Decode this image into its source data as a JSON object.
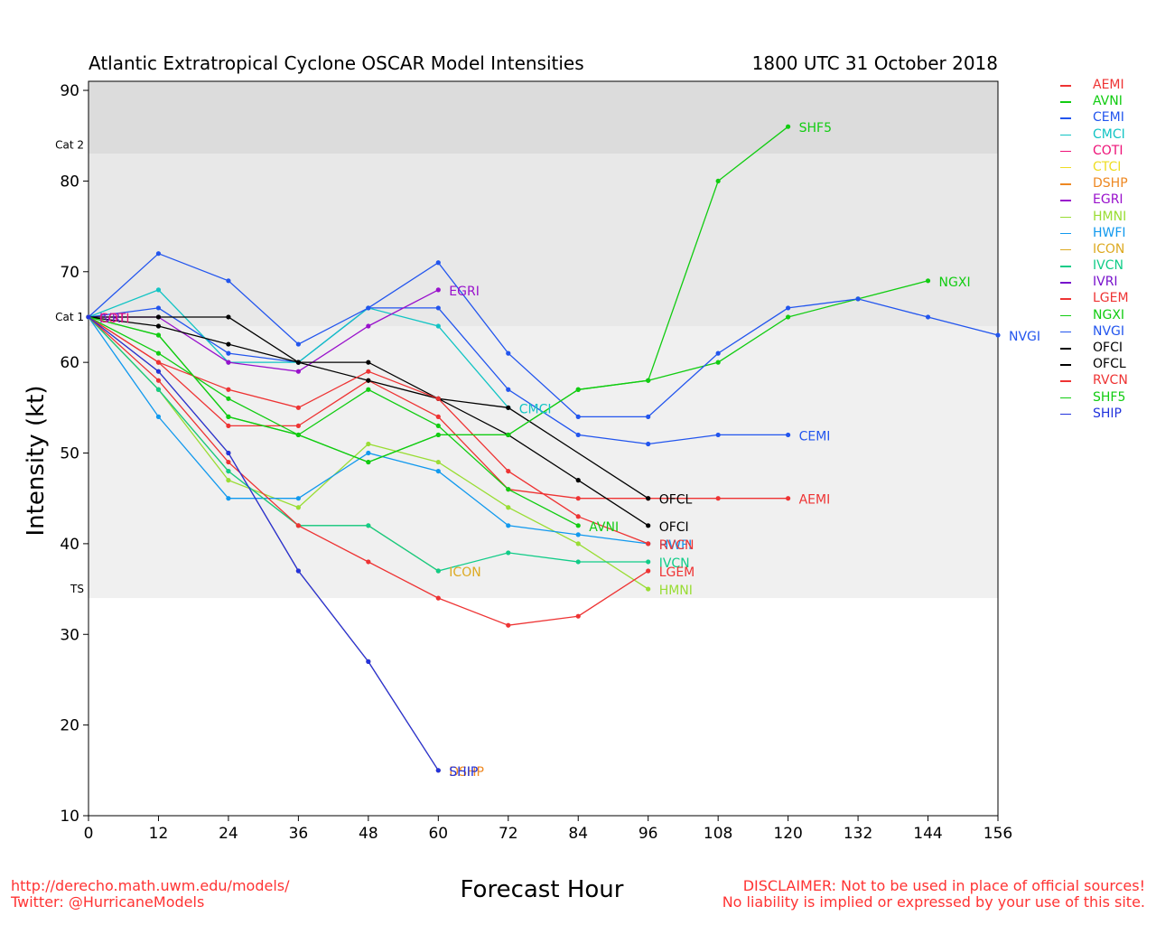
{
  "chart_data": {
    "type": "line",
    "title": "Atlantic Extratropical Cyclone OSCAR Model Intensities",
    "subtitle": "1800 UTC 31 October 2018",
    "xlabel": "Forecast Hour",
    "ylabel": "Intensity (kt)",
    "xlim": [
      0,
      156
    ],
    "ylim": [
      10,
      91
    ],
    "xticks": [
      0,
      12,
      24,
      36,
      48,
      60,
      72,
      84,
      96,
      108,
      120,
      132,
      144,
      156
    ],
    "yticks": [
      10,
      20,
      30,
      40,
      50,
      60,
      70,
      80,
      90
    ],
    "bands": [
      {
        "from": 83,
        "to": 91,
        "color": "#dcdcdc",
        "label": "Cat 2",
        "label_at": 83
      },
      {
        "from": 64,
        "to": 83,
        "color": "#e8e8e8",
        "label": "Cat 1",
        "label_at": 64
      },
      {
        "from": 34,
        "to": 64,
        "color": "#f0f0f0",
        "label": "TS",
        "label_at": 34
      }
    ],
    "series": [
      {
        "name": "AEMI",
        "color": "#ee3333",
        "x": [
          0,
          12,
          24,
          36,
          48,
          60,
          72,
          84,
          96,
          108,
          120
        ],
        "values": [
          65,
          60,
          53,
          53,
          58,
          54,
          46,
          45,
          45,
          45,
          45
        ]
      },
      {
        "name": "AVNI",
        "color": "#11cc11",
        "x": [
          0,
          12,
          24,
          36,
          48,
          60,
          72,
          84
        ],
        "values": [
          65,
          61,
          56,
          52,
          57,
          53,
          46,
          42
        ]
      },
      {
        "name": "CEMI",
        "color": "#2255ee",
        "x": [
          0,
          12,
          24,
          36,
          48,
          60,
          72,
          84,
          96,
          108,
          120
        ],
        "values": [
          65,
          66,
          61,
          60,
          66,
          66,
          57,
          52,
          51,
          52,
          52
        ]
      },
      {
        "name": "CMCI",
        "color": "#11c4c4",
        "x": [
          0,
          12,
          24,
          36,
          48,
          60,
          72
        ],
        "values": [
          65,
          68,
          60,
          60,
          66,
          64,
          55
        ]
      },
      {
        "name": "COTI",
        "color": "#ee1177",
        "x": [
          0
        ],
        "values": [
          65
        ]
      },
      {
        "name": "CTCI",
        "color": "#eedd22",
        "x": [
          0
        ],
        "values": [
          65
        ]
      },
      {
        "name": "DSHP",
        "color": "#ee8822",
        "x": [
          0,
          12,
          24,
          36,
          48,
          60
        ],
        "values": [
          65,
          59,
          50,
          37,
          27,
          15
        ]
      },
      {
        "name": "EGRI",
        "color": "#9911cc",
        "x": [
          0,
          12,
          24,
          36,
          48,
          60
        ],
        "values": [
          65,
          65,
          60,
          59,
          64,
          68
        ]
      },
      {
        "name": "HMNI",
        "color": "#99dd33",
        "x": [
          0,
          12,
          24,
          36,
          48,
          60,
          72,
          84,
          96
        ],
        "values": [
          65,
          57,
          47,
          44,
          51,
          49,
          44,
          40,
          35
        ]
      },
      {
        "name": "HWFI",
        "color": "#1199ee",
        "x": [
          0,
          12,
          24,
          36,
          48,
          60,
          72,
          84,
          96
        ],
        "values": [
          65,
          54,
          45,
          45,
          50,
          48,
          42,
          41,
          40
        ]
      },
      {
        "name": "ICON",
        "color": "#ddaa22",
        "x": [
          0,
          12,
          24,
          36,
          48,
          60
        ],
        "values": [
          65,
          57,
          48,
          42,
          42,
          37
        ]
      },
      {
        "name": "IVCN",
        "color": "#11cc88",
        "x": [
          0,
          12,
          24,
          36,
          48,
          60,
          72,
          84,
          96
        ],
        "values": [
          65,
          57,
          48,
          42,
          42,
          37,
          39,
          38,
          38
        ]
      },
      {
        "name": "IVRI",
        "color": "#7711cc",
        "x": [
          0
        ],
        "values": [
          65
        ]
      },
      {
        "name": "LGEM",
        "color": "#ee3333",
        "x": [
          0,
          12,
          24,
          36,
          48,
          60,
          72,
          84,
          96
        ],
        "values": [
          65,
          58,
          49,
          42,
          38,
          34,
          31,
          32,
          37
        ]
      },
      {
        "name": "NGXI",
        "color": "#11cc11",
        "x": [
          0,
          12,
          24,
          36,
          48,
          60,
          72,
          84,
          96,
          108,
          120,
          132,
          144
        ],
        "values": [
          65,
          63,
          54,
          52,
          49,
          52,
          52,
          57,
          58,
          60,
          65,
          67,
          69
        ]
      },
      {
        "name": "NVGI",
        "color": "#2255ee",
        "x": [
          0,
          12,
          24,
          36,
          48,
          60,
          72,
          84,
          96,
          108,
          120,
          132,
          144,
          156
        ],
        "values": [
          65,
          72,
          69,
          62,
          66,
          71,
          61,
          54,
          54,
          61,
          66,
          67,
          65,
          63
        ]
      },
      {
        "name": "OFCI",
        "color": "#000000",
        "x": [
          0,
          12,
          24,
          36,
          48,
          60,
          72,
          84,
          96
        ],
        "values": [
          65,
          65,
          65,
          60,
          60,
          56,
          52,
          47,
          42
        ]
      },
      {
        "name": "OFCL",
        "color": "#000000",
        "x": [
          0,
          12,
          24,
          36,
          48,
          60,
          72,
          96
        ],
        "values": [
          65,
          64,
          62,
          60,
          58,
          56,
          55,
          45
        ]
      },
      {
        "name": "RVCN",
        "color": "#ee3333",
        "x": [
          0,
          12,
          24,
          36,
          48,
          60,
          72,
          84,
          96
        ],
        "values": [
          65,
          60,
          57,
          55,
          59,
          56,
          48,
          43,
          40
        ]
      },
      {
        "name": "SHF5",
        "color": "#11cc11",
        "x": [
          0,
          12,
          24,
          36,
          48,
          60,
          72,
          84,
          96,
          108,
          120
        ],
        "values": [
          65,
          63,
          54,
          52,
          49,
          52,
          52,
          57,
          58,
          80,
          86
        ]
      },
      {
        "name": "SHIP",
        "color": "#2233dd",
        "x": [
          0,
          12,
          24,
          36,
          48,
          60
        ],
        "values": [
          65,
          59,
          50,
          37,
          27,
          15
        ]
      }
    ],
    "end_labels": [
      {
        "text": "SHF5",
        "color": "#11cc11",
        "x": 120,
        "y": 86
      },
      {
        "text": "NGXI",
        "color": "#11cc11",
        "x": 144,
        "y": 69
      },
      {
        "text": "EGRI",
        "color": "#9911cc",
        "x": 60,
        "y": 68
      },
      {
        "text": "NVGI",
        "color": "#2255ee",
        "x": 156,
        "y": 63
      },
      {
        "text": "CMCI",
        "color": "#11c4c4",
        "x": 72,
        "y": 55
      },
      {
        "text": "CEMI",
        "color": "#2255ee",
        "x": 120,
        "y": 52
      },
      {
        "text": "OFCL",
        "color": "#000000",
        "x": 96,
        "y": 45
      },
      {
        "text": "AEMI",
        "color": "#ee3333",
        "x": 120,
        "y": 45
      },
      {
        "text": "AVNI",
        "color": "#11cc11",
        "x": 84,
        "y": 42
      },
      {
        "text": "OFCI",
        "color": "#000000",
        "x": 96,
        "y": 42
      },
      {
        "text": "HWFI",
        "color": "#1199ee",
        "x": 96,
        "y": 40
      },
      {
        "text": "RVCN",
        "color": "#ee3333",
        "x": 96,
        "y": 40
      },
      {
        "text": "IVCN",
        "color": "#11cc88",
        "x": 96,
        "y": 38
      },
      {
        "text": "ICON",
        "color": "#ddaa22",
        "x": 60,
        "y": 37
      },
      {
        "text": "LGEM",
        "color": "#ee3333",
        "x": 96,
        "y": 37
      },
      {
        "text": "HMNI",
        "color": "#99dd33",
        "x": 96,
        "y": 35
      },
      {
        "text": "DSHP",
        "color": "#ee8822",
        "x": 60,
        "y": 15
      },
      {
        "text": "SHIP",
        "color": "#2233dd",
        "x": 60,
        "y": 15
      },
      {
        "text": "IVRI",
        "color": "#7711cc",
        "x": 0,
        "y": 65
      },
      {
        "text": "COTI",
        "color": "#ee1177",
        "x": 0,
        "y": 65
      }
    ],
    "legend": [
      {
        "name": "AEMI",
        "color": "#ee3333"
      },
      {
        "name": "AVNI",
        "color": "#11cc11"
      },
      {
        "name": "CEMI",
        "color": "#2255ee"
      },
      {
        "name": "CMCI",
        "color": "#11c4c4"
      },
      {
        "name": "COTI",
        "color": "#ee1177"
      },
      {
        "name": "CTCI",
        "color": "#eedd22"
      },
      {
        "name": "DSHP",
        "color": "#ee8822"
      },
      {
        "name": "EGRI",
        "color": "#9911cc"
      },
      {
        "name": "HMNI",
        "color": "#99dd33"
      },
      {
        "name": "HWFI",
        "color": "#1199ee"
      },
      {
        "name": "ICON",
        "color": "#ddaa22"
      },
      {
        "name": "IVCN",
        "color": "#11cc88"
      },
      {
        "name": "IVRI",
        "color": "#7711cc"
      },
      {
        "name": "LGEM",
        "color": "#ee3333"
      },
      {
        "name": "NGXI",
        "color": "#11cc11"
      },
      {
        "name": "NVGI",
        "color": "#2255ee"
      },
      {
        "name": "OFCI",
        "color": "#000000"
      },
      {
        "name": "OFCL",
        "color": "#000000"
      },
      {
        "name": "RVCN",
        "color": "#ee3333"
      },
      {
        "name": "SHF5",
        "color": "#11cc11"
      },
      {
        "name": "SHIP",
        "color": "#2233dd"
      }
    ],
    "legend_position": "right"
  },
  "footer": {
    "url": "http://derecho.math.uwm.edu/models/",
    "twitter": "Twitter: @HurricaneModels",
    "disclaimer_1": "DISCLAIMER: Not to be used in place of official sources!",
    "disclaimer_2": "No liability is implied or expressed by your use of this site."
  }
}
